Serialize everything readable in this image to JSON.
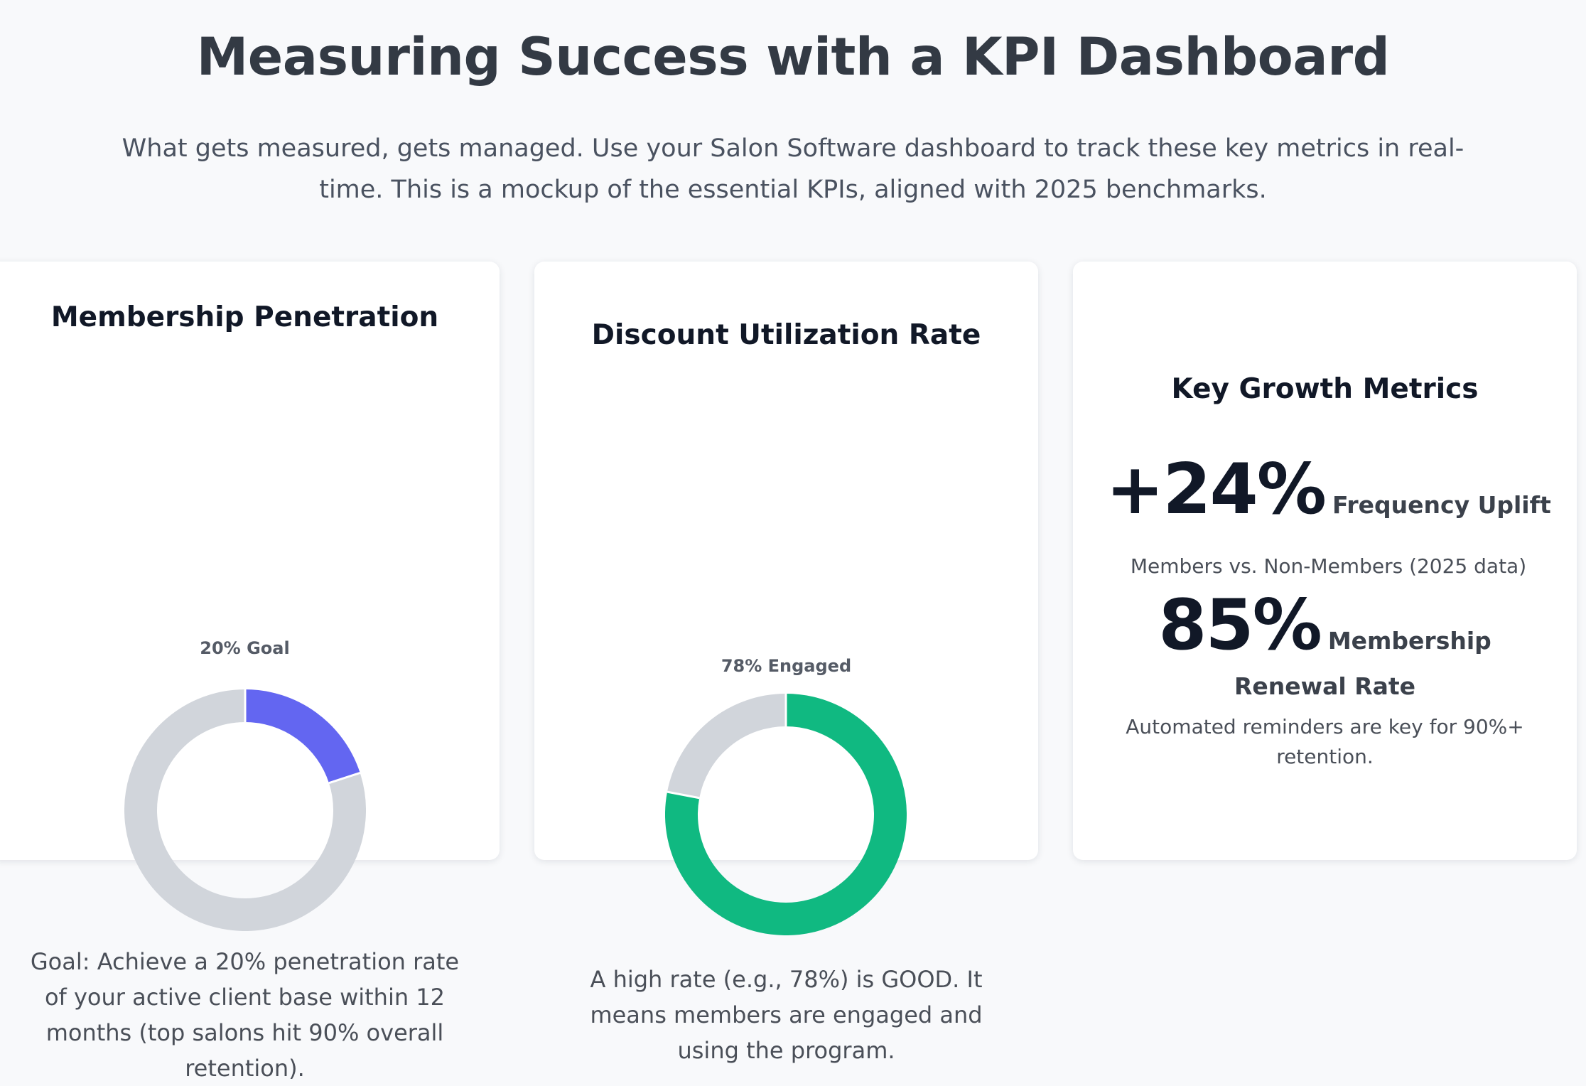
{
  "page": {
    "title": "Measuring Success with a KPI Dashboard",
    "intro": "What gets measured, gets managed. Use your Salon Software dashboard to track these key metrics in real-time. This is a mockup of the essential KPIs, aligned with 2025 benchmarks."
  },
  "cards": {
    "membership": {
      "title": "Membership Penetration",
      "chart_label": "20% Goal",
      "description": "Goal: Achieve a 20% penetration rate of your active client base within 12 months (top salons hit 90% overall retention)."
    },
    "discount": {
      "title": "Discount Utilization Rate",
      "chart_label": "78% Engaged",
      "description": "A high rate (e.g., 78%) is GOOD. It means members are engaged and using the program."
    },
    "growth": {
      "title": "Key Growth Metrics",
      "metrics": [
        {
          "value": "+24%",
          "label": "Frequency Uplift",
          "note": "Members vs. Non-Members (2025 data)"
        },
        {
          "value": "85%",
          "label": "Membership Renewal Rate",
          "note": "Automated reminders are key for 90%+ retention."
        }
      ]
    }
  },
  "chart_data": [
    {
      "type": "pie",
      "title": "20% Goal",
      "categories": [
        "",
        ""
      ],
      "values": [
        20,
        80
      ],
      "colors": [
        "#6366f1",
        "#d1d5db"
      ],
      "style": "donut"
    },
    {
      "type": "pie",
      "title": "78% Engaged",
      "categories": [
        "",
        ""
      ],
      "values": [
        78,
        22
      ],
      "colors": [
        "#10b981",
        "#d1d5db"
      ],
      "style": "donut"
    }
  ]
}
